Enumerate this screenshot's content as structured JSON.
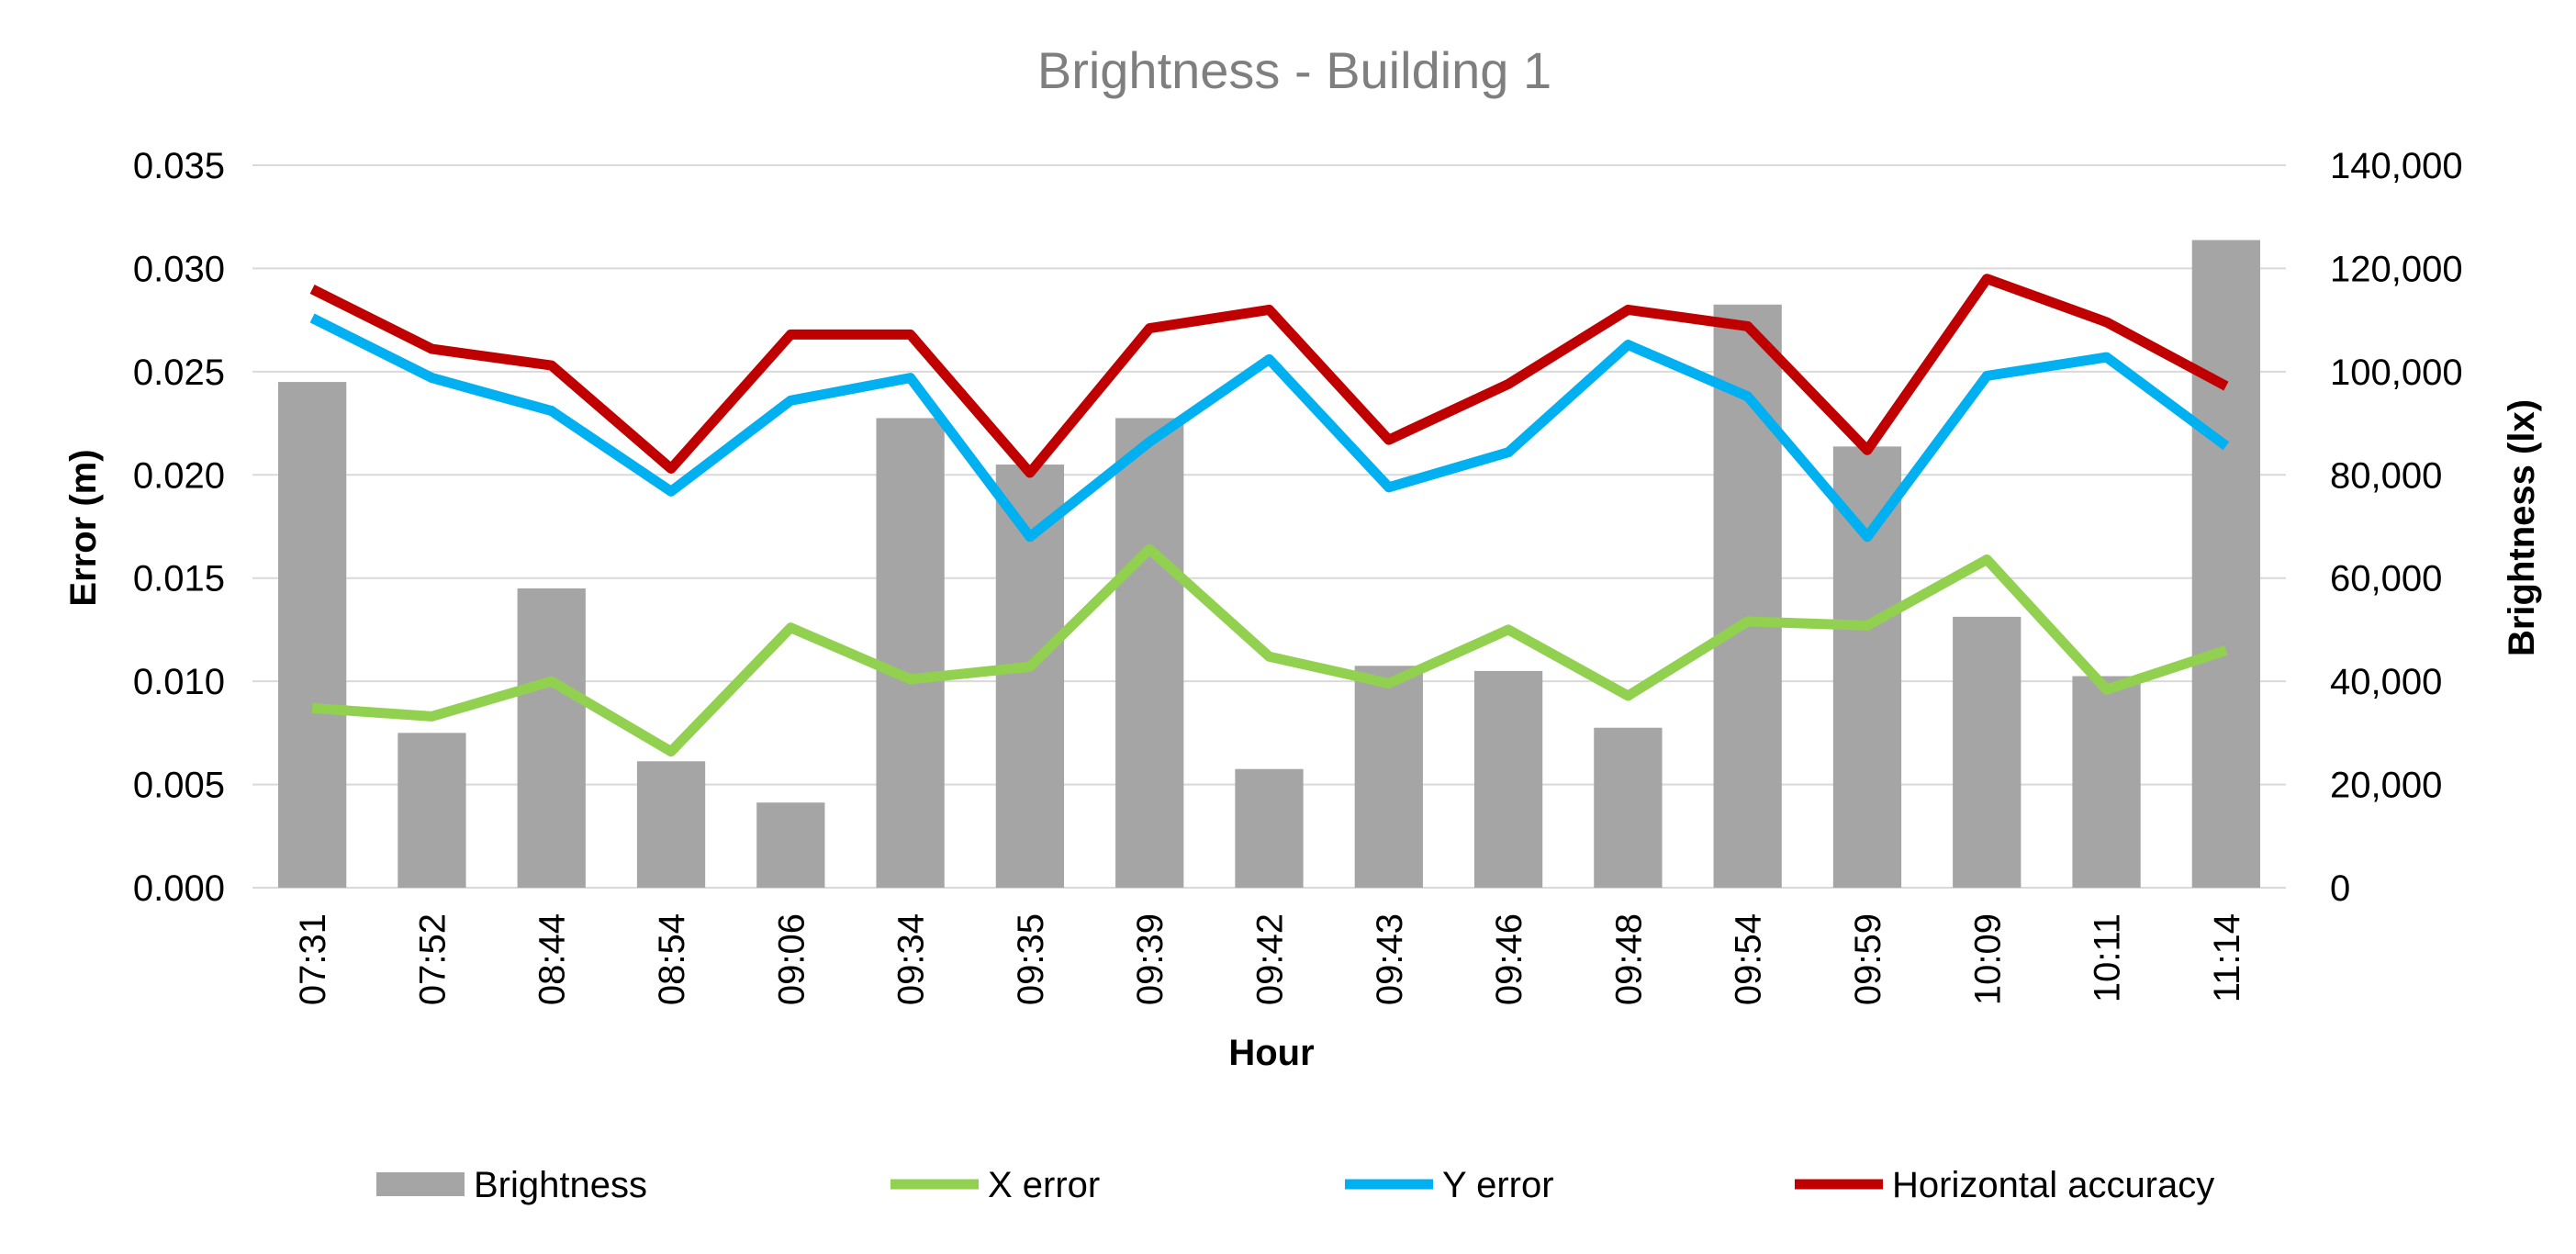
{
  "colors": {
    "brightness": "#a5a5a5",
    "x_error": "#92d050",
    "y_error": "#00b0f0",
    "horizontal_accuracy": "#c00000",
    "title": "#7f7f7f",
    "grid": "#d9d9d9"
  },
  "chart_data": {
    "type": "bar",
    "combo": "bar+line (dual y-axis)",
    "title": "Brightness - Building 1",
    "xlabel": "Hour",
    "ylabel": "Error (m)",
    "y2label": "Brightness (lx)",
    "categories": [
      "07:31",
      "07:52",
      "08:44",
      "08:54",
      "09:06",
      "09:34",
      "09:35",
      "09:39",
      "09:42",
      "09:43",
      "09:46",
      "09:48",
      "09:54",
      "09:59",
      "10:09",
      "10:11",
      "11:14"
    ],
    "ylim": [
      0,
      0.035
    ],
    "y2lim": [
      0,
      140000
    ],
    "yticks": [
      "0.000",
      "0.005",
      "0.010",
      "0.015",
      "0.020",
      "0.025",
      "0.030",
      "0.035"
    ],
    "y2ticks": [
      "0",
      "20,000",
      "40,000",
      "60,000",
      "80,000",
      "100,000",
      "120,000",
      "140,000"
    ],
    "grid": true,
    "legend_position": "bottom",
    "series": [
      {
        "name": "Brightness",
        "type": "bar",
        "axis": "right",
        "values": [
          98000,
          30000,
          58000,
          24500,
          16500,
          91000,
          82000,
          91000,
          23000,
          43000,
          42000,
          31000,
          113000,
          85500,
          52500,
          41000,
          125500
        ]
      },
      {
        "name": "X error",
        "type": "line",
        "axis": "left",
        "values": [
          0.0087,
          0.0083,
          0.01,
          0.0066,
          0.0126,
          0.0101,
          0.0107,
          0.0164,
          0.0112,
          0.0099,
          0.0125,
          0.0093,
          0.0129,
          0.0127,
          0.0159,
          0.0096,
          0.0115
        ]
      },
      {
        "name": "Y error",
        "type": "line",
        "axis": "left",
        "values": [
          0.0276,
          0.0247,
          0.0231,
          0.0192,
          0.0236,
          0.0247,
          0.017,
          0.0216,
          0.0256,
          0.0194,
          0.0211,
          0.0263,
          0.0238,
          0.017,
          0.0248,
          0.0257,
          0.0214
        ]
      },
      {
        "name": "Horizontal accuracy",
        "type": "line",
        "axis": "left",
        "values": [
          0.029,
          0.0261,
          0.0253,
          0.0203,
          0.0268,
          0.0268,
          0.0201,
          0.0271,
          0.028,
          0.0217,
          0.0244,
          0.028,
          0.0272,
          0.0212,
          0.0295,
          0.0274,
          0.0243
        ]
      }
    ]
  }
}
